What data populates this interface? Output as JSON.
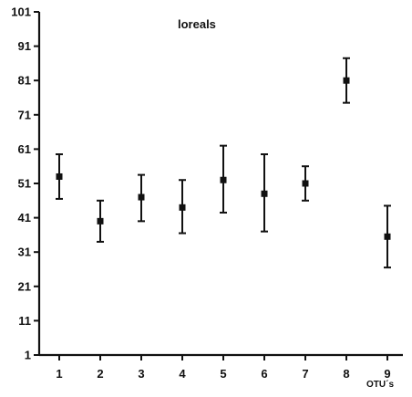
{
  "chart_data": {
    "type": "scatter",
    "title": "loreals",
    "xlabel": "OTU´s",
    "ylabel": "",
    "xlim": [
      0.5,
      9.5
    ],
    "ylim": [
      1,
      101
    ],
    "y_ticks": [
      1,
      11,
      21,
      31,
      41,
      51,
      61,
      71,
      81,
      91,
      101
    ],
    "x_ticks": [
      1,
      2,
      3,
      4,
      5,
      6,
      7,
      8,
      9
    ],
    "grid": false,
    "points": [
      {
        "x": 1,
        "y": 53,
        "low": 46.5,
        "high": 59.5
      },
      {
        "x": 2,
        "y": 40,
        "low": 34,
        "high": 46
      },
      {
        "x": 3,
        "y": 47,
        "low": 40,
        "high": 53.5
      },
      {
        "x": 4,
        "y": 44,
        "low": 36.5,
        "high": 52
      },
      {
        "x": 5,
        "y": 52,
        "low": 42.5,
        "high": 62
      },
      {
        "x": 6,
        "y": 48,
        "low": 37,
        "high": 59.5
      },
      {
        "x": 7,
        "y": 51,
        "low": 46,
        "high": 56
      },
      {
        "x": 8,
        "y": 81,
        "low": 74.5,
        "high": 87.5
      },
      {
        "x": 9,
        "y": 35.5,
        "low": 26.5,
        "high": 44.5
      }
    ],
    "colors": {
      "marks": "#111111",
      "background": "#ffffff"
    }
  }
}
